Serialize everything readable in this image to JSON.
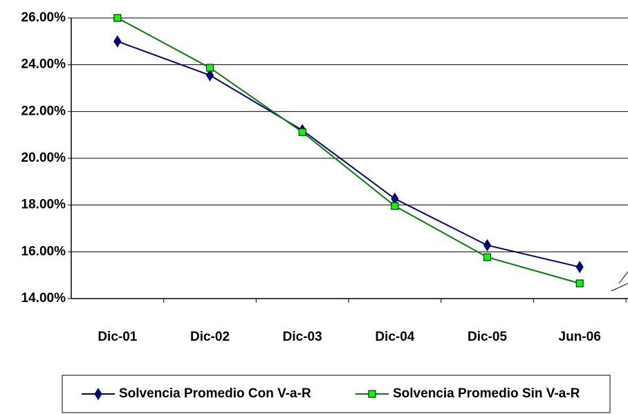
{
  "chart_data": {
    "type": "line",
    "categories": [
      "Dic-01",
      "Dic-02",
      "Dic-03",
      "Dic-04",
      "Dic-05",
      "Jun-06"
    ],
    "series": [
      {
        "name": "Solvencia Promedio Con V-a-R",
        "color": "#000080",
        "marker": "diamond",
        "values": [
          25.0,
          23.55,
          21.2,
          18.27,
          16.28,
          15.35
        ]
      },
      {
        "name": "Solvencia Promedio Sin V-a-R",
        "color": "#008000",
        "marker_color": "#00ff00",
        "marker": "square",
        "values": [
          26.0,
          23.87,
          21.12,
          17.96,
          15.77,
          14.65
        ]
      }
    ],
    "ylim": [
      14,
      26
    ],
    "yticks": [
      {
        "value": 14,
        "label": "14.00%"
      },
      {
        "value": 16,
        "label": "16.00%"
      },
      {
        "value": 18,
        "label": "18.00%"
      },
      {
        "value": 20,
        "label": "20.00%"
      },
      {
        "value": 22,
        "label": "22.00%"
      },
      {
        "value": 24,
        "label": "24.00%"
      },
      {
        "value": 26,
        "label": "26.00%"
      }
    ],
    "grid": true,
    "legend": "bottom"
  }
}
